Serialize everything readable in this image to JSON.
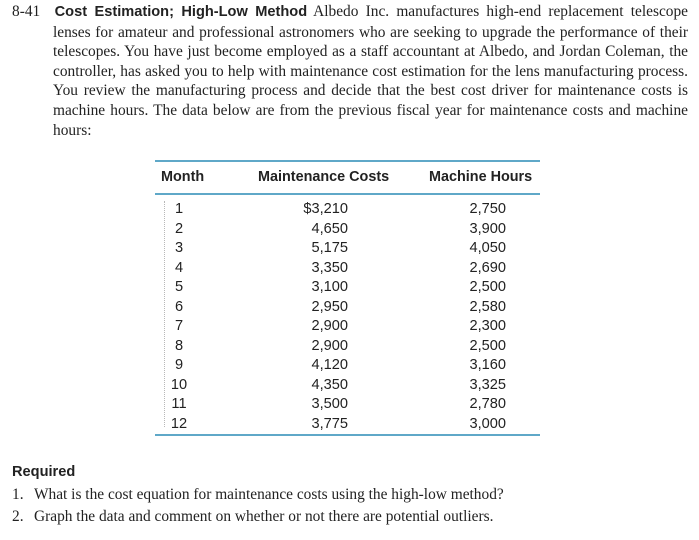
{
  "problem": {
    "number": "8-41",
    "title": "Cost Estimation; High-Low Method",
    "body": "Albedo Inc. manufactures high-end replacement telescope lenses for amateur and professional astronomers who are seeking to upgrade the performance of their telescopes. You have just become employed as a staff accountant at Albedo, and Jordan Coleman, the controller, has asked you to help with maintenance cost estimation for the lens manufacturing process. You review the manufacturing process and decide that the best cost driver for maintenance costs is machine hours. The data below are from the previous fiscal year for maintenance costs and machine hours:"
  },
  "table": {
    "headers": {
      "month": "Month",
      "maintenance": "Maintenance Costs",
      "hours": "Machine Hours"
    },
    "rows": [
      {
        "month": "1",
        "cost": "$3,210",
        "hours": "2,750"
      },
      {
        "month": "2",
        "cost": "4,650",
        "hours": "3,900"
      },
      {
        "month": "3",
        "cost": "5,175",
        "hours": "4,050"
      },
      {
        "month": "4",
        "cost": "3,350",
        "hours": "2,690"
      },
      {
        "month": "5",
        "cost": "3,100",
        "hours": "2,500"
      },
      {
        "month": "6",
        "cost": "2,950",
        "hours": "2,580"
      },
      {
        "month": "7",
        "cost": "2,900",
        "hours": "2,300"
      },
      {
        "month": "8",
        "cost": "2,900",
        "hours": "2,500"
      },
      {
        "month": "9",
        "cost": "4,120",
        "hours": "3,160"
      },
      {
        "month": "10",
        "cost": "4,350",
        "hours": "3,325"
      },
      {
        "month": "11",
        "cost": "3,500",
        "hours": "2,780"
      },
      {
        "month": "12",
        "cost": "3,775",
        "hours": "3,000"
      }
    ]
  },
  "required": {
    "heading": "Required",
    "items": [
      {
        "num": "1.",
        "text": "What is the cost equation for maintenance costs using the high-low method?"
      },
      {
        "num": "2.",
        "text": "Graph the data and comment on whether or not there are potential outliers."
      }
    ]
  },
  "colors": {
    "rule": "#5fa8c8",
    "text": "#222222"
  }
}
